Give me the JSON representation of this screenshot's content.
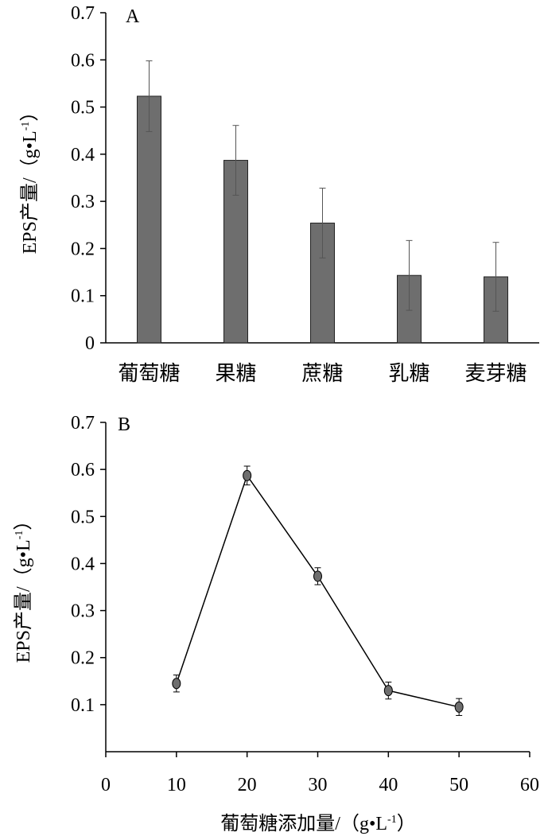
{
  "chart_data": [
    {
      "panel_label": "A",
      "type": "bar",
      "ylabel": "EPS产量/（g•L",
      "ylabel_sup": "-1",
      "ylabel_close": "）",
      "xlabel": "",
      "ylim": [
        0,
        0.7
      ],
      "yticks": [
        "0",
        "0.1",
        "0.2",
        "0.3",
        "0.4",
        "0.5",
        "0.6",
        "0.7"
      ],
      "categories": [
        "葡萄糖",
        "果糖",
        "蔗糖",
        "乳糖",
        "麦芽糖"
      ],
      "values": [
        0.523,
        0.387,
        0.254,
        0.143,
        0.14
      ],
      "errors": [
        0.075,
        0.074,
        0.074,
        0.074,
        0.073
      ],
      "bar_color": "#6e6e6e"
    },
    {
      "panel_label": "B",
      "type": "line",
      "ylabel": "EPS产量/（g•L",
      "ylabel_sup": "-1",
      "ylabel_close": "）",
      "xlabel": "葡萄糖添加量/（g•L",
      "xlabel_sup": "-1",
      "xlabel_close": "）",
      "ylim": [
        0,
        0.7
      ],
      "xlim": [
        0,
        60
      ],
      "yticks": [
        "0.1",
        "0.2",
        "0.3",
        "0.4",
        "0.5",
        "0.6",
        "0.7"
      ],
      "xticks": [
        "0",
        "10",
        "20",
        "30",
        "40",
        "50",
        "60"
      ],
      "x": [
        10,
        20,
        30,
        40,
        50
      ],
      "y": [
        0.145,
        0.587,
        0.373,
        0.13,
        0.095
      ],
      "errors": [
        0.018,
        0.02,
        0.018,
        0.018,
        0.018
      ],
      "marker_color": "#6e6e6e"
    }
  ]
}
